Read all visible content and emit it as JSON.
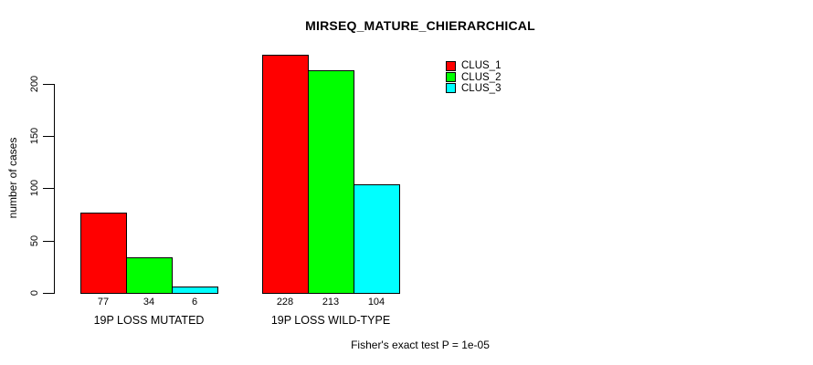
{
  "title": "MIRSEQ_MATURE_CHIERARCHICAL",
  "ylabel": "number of cases",
  "footnote": "Fisher's exact test P = 1e-05",
  "chart_data": {
    "type": "bar",
    "title": "MIRSEQ_MATURE_CHIERARCHICAL",
    "xlabel": "",
    "ylabel": "number of cases",
    "categories": [
      "19P LOSS MUTATED",
      "19P LOSS WILD-TYPE"
    ],
    "series": [
      {
        "name": "CLUS_1",
        "color": "#ff0000",
        "values": [
          77,
          228
        ]
      },
      {
        "name": "CLUS_2",
        "color": "#00ff00",
        "values": [
          34,
          213
        ]
      },
      {
        "name": "CLUS_3",
        "color": "#00ffff",
        "values": [
          6,
          104
        ]
      }
    ],
    "bar_value_labels": [
      [
        "77",
        "34",
        "6"
      ],
      [
        "228",
        "213",
        "104"
      ]
    ],
    "yticks": [
      0,
      50,
      100,
      150,
      200
    ],
    "ylim": [
      0,
      228
    ],
    "grid": false,
    "legend_position": "top-right",
    "annotation": "Fisher's exact test P = 1e-05"
  }
}
